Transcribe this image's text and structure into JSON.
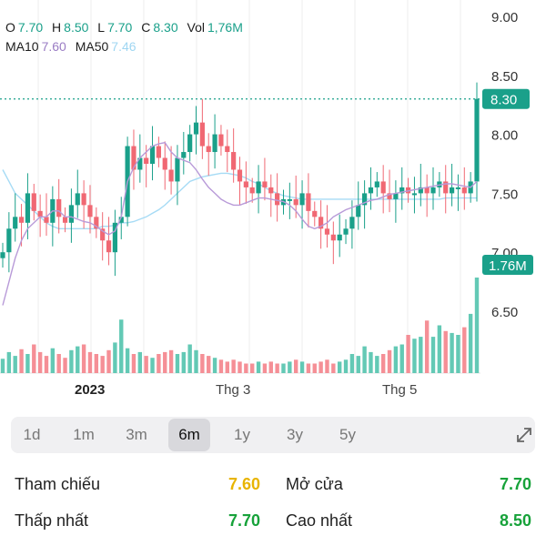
{
  "header": {
    "open_key": "O",
    "open_val": "7.70",
    "high_key": "H",
    "high_val": "8.50",
    "low_key": "L",
    "low_val": "7.70",
    "close_key": "C",
    "close_val": "8.30",
    "vol_key": "Vol",
    "vol_val": "1,76M",
    "ma10_key": "MA10",
    "ma10_val": "7.60",
    "ma50_key": "MA50",
    "ma50_val": "7.46"
  },
  "chart_data": {
    "type": "candlestick",
    "y_ticks": [
      "9.00",
      "8.50",
      "8.00",
      "7.50",
      "7.00",
      "6.50"
    ],
    "y_tick_values": [
      9.0,
      8.5,
      8.0,
      7.5,
      7.0,
      6.5
    ],
    "x_ticks": [
      "2023",
      "Thg 3",
      "Thg 5"
    ],
    "last_price": 8.3,
    "last_price_label": "8.30",
    "volume_label": "1.76M",
    "close_series": [
      7.0,
      7.2,
      7.3,
      7.25,
      7.5,
      7.35,
      7.3,
      7.25,
      7.45,
      7.3,
      7.25,
      7.4,
      7.5,
      7.4,
      7.3,
      7.2,
      7.1,
      7.0,
      7.25,
      7.3,
      7.9,
      7.7,
      7.8,
      7.75,
      7.9,
      7.8,
      7.7,
      7.6,
      7.8,
      7.85,
      8.0,
      8.1,
      7.9,
      7.85,
      8.0,
      7.9,
      7.85,
      7.7,
      7.6,
      7.55,
      7.5,
      7.6,
      7.55,
      7.5,
      7.4,
      7.45,
      7.45,
      7.4,
      7.5,
      7.35,
      7.3,
      7.2,
      7.15,
      7.1,
      7.15,
      7.2,
      7.3,
      7.4,
      7.5,
      7.55,
      7.6,
      7.5,
      7.45,
      7.5,
      7.55,
      7.5,
      7.5,
      7.55,
      7.5,
      7.55,
      7.6,
      7.5,
      7.55,
      7.55,
      7.5,
      7.6,
      8.3
    ],
    "ma10": [
      6.55,
      6.75,
      6.95,
      7.1,
      7.2,
      7.25,
      7.3,
      7.3,
      7.35,
      7.35,
      7.3,
      7.3,
      7.28,
      7.26,
      7.25,
      7.22,
      7.18,
      7.15,
      7.18,
      7.3,
      7.6,
      7.72,
      7.8,
      7.85,
      7.9,
      7.92,
      7.93,
      7.85,
      7.8,
      7.78,
      7.76,
      7.7,
      7.62,
      7.55,
      7.5,
      7.45,
      7.42,
      7.4,
      7.4,
      7.42,
      7.44,
      7.46,
      7.46,
      7.45,
      7.44,
      7.43,
      7.4,
      7.35,
      7.28,
      7.22,
      7.2,
      7.22,
      7.25,
      7.3,
      7.33,
      7.36,
      7.38,
      7.4,
      7.42,
      7.44,
      7.45,
      7.47,
      7.49,
      7.5,
      7.51,
      7.52,
      7.53,
      7.54,
      7.55,
      7.56,
      7.57,
      7.58,
      7.58,
      7.57,
      7.56,
      7.55,
      7.6
    ],
    "ma50": [
      7.7,
      7.6,
      7.5,
      7.45,
      7.4,
      7.35,
      7.3,
      7.25,
      7.22,
      7.2,
      7.2,
      7.2,
      7.2,
      7.2,
      7.2,
      7.2,
      7.22,
      7.22,
      7.23,
      7.25,
      7.25,
      7.26,
      7.28,
      7.3,
      7.33,
      7.36,
      7.4,
      7.45,
      7.5,
      7.55,
      7.6,
      7.62,
      7.64,
      7.65,
      7.66,
      7.67,
      7.67,
      7.66,
      7.65,
      7.63,
      7.6,
      7.58,
      7.55,
      7.52,
      7.5,
      7.48,
      7.47,
      7.46,
      7.45,
      7.45,
      7.45,
      7.45,
      7.45,
      7.45,
      7.45,
      7.45,
      7.45,
      7.45,
      7.45,
      7.45,
      7.45,
      7.45,
      7.45,
      7.45,
      7.45,
      7.45,
      7.45,
      7.45,
      7.45,
      7.45,
      7.45,
      7.46,
      7.46,
      7.46,
      7.46,
      7.46,
      7.46
    ],
    "volume_relative": [
      0.15,
      0.22,
      0.18,
      0.25,
      0.2,
      0.3,
      0.22,
      0.18,
      0.26,
      0.2,
      0.16,
      0.24,
      0.28,
      0.3,
      0.22,
      0.2,
      0.18,
      0.24,
      0.32,
      0.56,
      0.26,
      0.2,
      0.22,
      0.18,
      0.16,
      0.2,
      0.22,
      0.24,
      0.2,
      0.22,
      0.3,
      0.24,
      0.2,
      0.18,
      0.16,
      0.14,
      0.12,
      0.14,
      0.12,
      0.1,
      0.1,
      0.12,
      0.1,
      0.12,
      0.1,
      0.1,
      0.12,
      0.14,
      0.12,
      0.1,
      0.1,
      0.12,
      0.14,
      0.1,
      0.12,
      0.14,
      0.2,
      0.18,
      0.28,
      0.22,
      0.18,
      0.2,
      0.24,
      0.28,
      0.3,
      0.4,
      0.36,
      0.38,
      0.55,
      0.38,
      0.5,
      0.44,
      0.42,
      0.4,
      0.48,
      0.62,
      1.0
    ],
    "up_color": "#1aa08a",
    "down_color": "#f06873",
    "ma10_color": "#b89ad8",
    "ma50_color": "#a6dbf5"
  },
  "periods": [
    "1d",
    "1m",
    "3m",
    "6m",
    "1y",
    "3y",
    "5y"
  ],
  "active_period": "6m",
  "stats": {
    "ref_label": "Tham chiếu",
    "ref_value": "7.60",
    "open_label": "Mở cửa",
    "open_value": "7.70",
    "low_label": "Thấp nhất",
    "low_value": "7.70",
    "high_label": "Cao nhất",
    "high_value": "8.50"
  },
  "colors": {
    "ref": "#e8b400",
    "up": "#17a23a",
    "accent": "#1aa08a"
  }
}
